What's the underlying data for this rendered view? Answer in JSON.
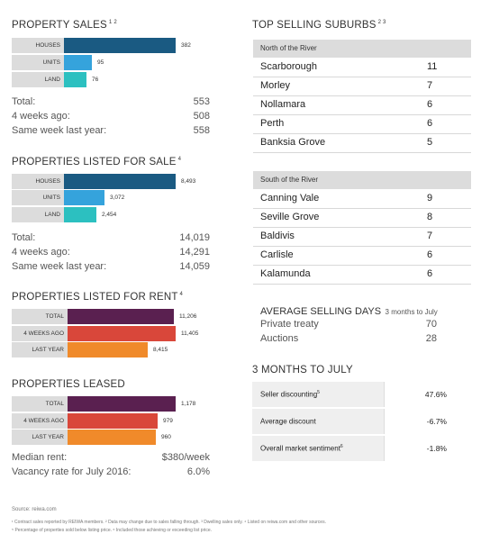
{
  "colors": {
    "blue_dark": "#1a5a82",
    "blue_light": "#35a3dc",
    "teal": "#2cc0c0",
    "purple": "#5a2050",
    "red": "#d9473a",
    "orange": "#f08a2a"
  },
  "sales": {
    "title": "PROPERTY SALES",
    "sup": "1 2",
    "bars": [
      {
        "label": "HOUSES",
        "value": "382",
        "num": 382
      },
      {
        "label": "UNITS",
        "value": "95",
        "num": 95
      },
      {
        "label": "LAND",
        "value": "76",
        "num": 76
      }
    ],
    "stats": [
      {
        "label": "Total:",
        "value": "553"
      },
      {
        "label": "4 weeks ago:",
        "value": "508"
      },
      {
        "label": "Same week last year:",
        "value": "558"
      }
    ]
  },
  "listed_sale": {
    "title": "PROPERTIES LISTED FOR SALE",
    "sup": "4",
    "bars": [
      {
        "label": "HOUSES",
        "value": "8,493",
        "num": 8493
      },
      {
        "label": "UNITS",
        "value": "3,072",
        "num": 3072
      },
      {
        "label": "LAND",
        "value": "2,454",
        "num": 2454
      }
    ],
    "stats": [
      {
        "label": "Total:",
        "value": "14,019"
      },
      {
        "label": "4 weeks ago:",
        "value": "14,291"
      },
      {
        "label": "Same week last year:",
        "value": "14,059"
      }
    ]
  },
  "listed_rent": {
    "title": "PROPERTIES LISTED FOR RENT",
    "sup": "4",
    "bars": [
      {
        "label": "TOTAL",
        "value": "11,206",
        "num": 11206
      },
      {
        "label": "4 WEEKS AGO",
        "value": "11,405",
        "num": 11405
      },
      {
        "label": "LAST YEAR",
        "value": "8,415",
        "num": 8415
      }
    ]
  },
  "leased": {
    "title": "PROPERTIES LEASED",
    "bars": [
      {
        "label": "TOTAL",
        "value": "1,178",
        "num": 1178
      },
      {
        "label": "4 WEEKS AGO",
        "value": "979",
        "num": 979
      },
      {
        "label": "LAST YEAR",
        "value": "960",
        "num": 960
      }
    ],
    "stats": [
      {
        "label": "Median rent:",
        "value": "$380/week"
      },
      {
        "label": "Vacancy rate for July 2016:",
        "value": "6.0%"
      }
    ]
  },
  "top_suburbs": {
    "title": "TOP SELLING SUBURBS",
    "sup": "2 3",
    "north": {
      "heading": "North of the River",
      "rows": [
        {
          "name": "Scarborough",
          "value": "11"
        },
        {
          "name": "Morley",
          "value": "7"
        },
        {
          "name": "Nollamara",
          "value": "6"
        },
        {
          "name": "Perth",
          "value": "6"
        },
        {
          "name": "Banksia Grove",
          "value": "5"
        }
      ]
    },
    "south": {
      "heading": "South of the River",
      "rows": [
        {
          "name": "Canning Vale",
          "value": "9"
        },
        {
          "name": "Seville Grove",
          "value": "8"
        },
        {
          "name": "Baldivis",
          "value": "7"
        },
        {
          "name": "Carlisle",
          "value": "6"
        },
        {
          "name": "Kalamunda",
          "value": "6"
        }
      ]
    }
  },
  "avg_days": {
    "title": "AVERAGE SELLING DAYS",
    "subtitle": "3 months to July",
    "rows": [
      {
        "label": "Private treaty",
        "value": "70"
      },
      {
        "label": "Auctions",
        "value": "28"
      }
    ]
  },
  "three_months": {
    "title": "3 MONTHS TO JULY",
    "rows": [
      {
        "label": "Seller discounting",
        "sup": "5",
        "value": "47.6%"
      },
      {
        "label": "Average discount",
        "sup": "",
        "value": "-6.7%"
      },
      {
        "label": "Overall market sentiment",
        "sup": "6",
        "value": "-1.8%"
      }
    ]
  },
  "footer": {
    "source": "Source: reiwa.com",
    "note1": "¹ Contract sales reported by REIWA members. ² Data may change due to sales falling through. ³ Dwelling sales only. ⁴ Listed on reiwa.com and other sources.",
    "note2": "⁵ Percentage of properties sold below listing price. ⁶ Included those achieving or exceeding list price."
  }
}
